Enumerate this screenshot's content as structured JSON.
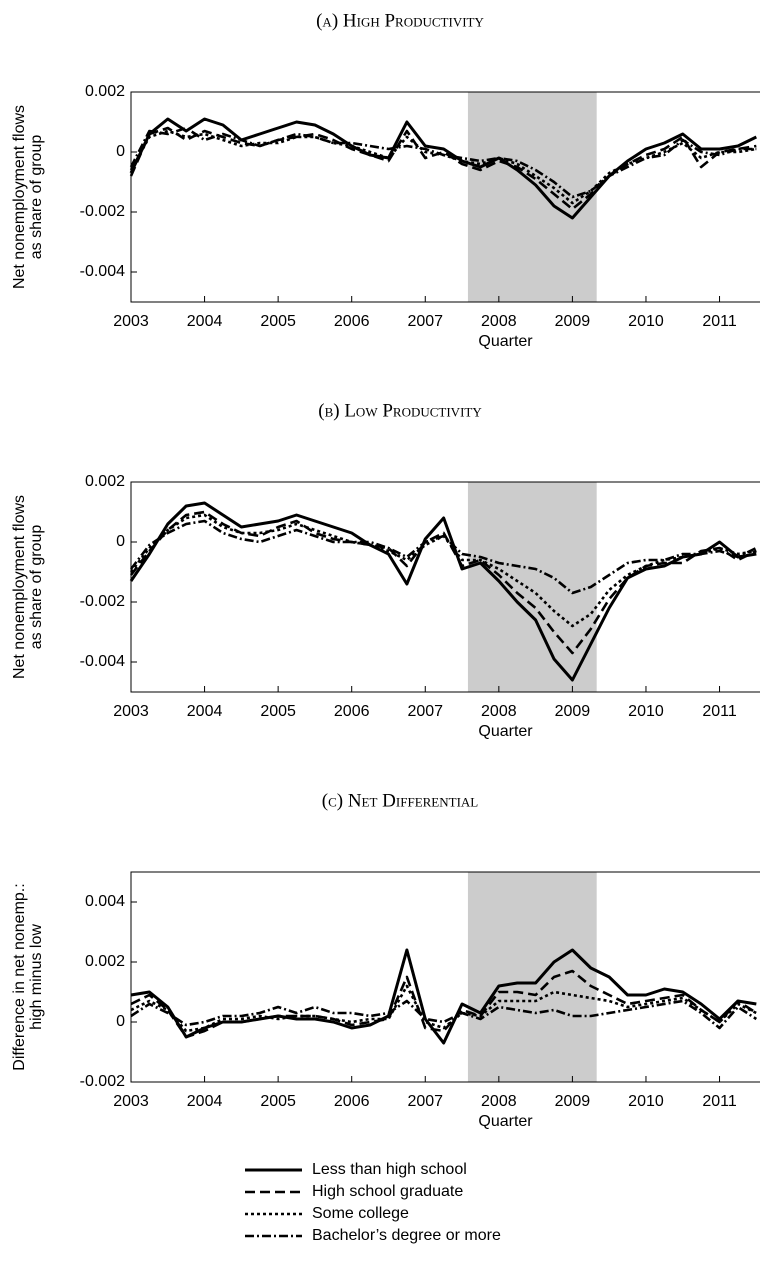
{
  "chart_data": [
    {
      "type": "line",
      "title": "(a) High Productivity",
      "xlabel": "Quarter",
      "ylabel": [
        "Net nonemployment flows",
        "as share of group"
      ],
      "x": [
        2003,
        2003.25,
        2003.5,
        2003.75,
        2004,
        2004.25,
        2004.5,
        2004.75,
        2005,
        2005.25,
        2005.5,
        2005.75,
        2006,
        2006.25,
        2006.5,
        2006.75,
        2007,
        2007.25,
        2007.5,
        2007.75,
        2008,
        2008.25,
        2008.5,
        2008.75,
        2009,
        2009.25,
        2009.5,
        2009.75,
        2010,
        2010.25,
        2010.5,
        2010.75,
        2011,
        2011.25,
        2011.5
      ],
      "xlim": [
        2003,
        2011.55
      ],
      "xticks": [
        2003,
        2004,
        2005,
        2006,
        2007,
        2008,
        2009,
        2010,
        2011
      ],
      "ylim": [
        -0.005,
        0.002
      ],
      "yticks": [
        -0.004,
        -0.002,
        0,
        0.002
      ],
      "shade": [
        2007.58,
        2009.33
      ],
      "series": [
        {
          "name": "Less than high school",
          "color": "#000000",
          "dash": "solid",
          "values": [
            -0.0007,
            0.0006,
            0.0011,
            0.0007,
            0.0011,
            0.0009,
            0.0004,
            0.0006,
            0.0008,
            0.001,
            0.0009,
            0.0006,
            0.0002,
            -0.0001,
            -0.0002,
            0.001,
            0.0002,
            0.0001,
            -0.0003,
            -0.0005,
            -0.0002,
            -0.0006,
            -0.0011,
            -0.0018,
            -0.0022,
            -0.0015,
            -0.0008,
            -0.0003,
            0.0001,
            0.0003,
            0.0006,
            0.0001,
            0.0001,
            0.0002,
            0.0005
          ]
        },
        {
          "name": "High school graduate",
          "color": "#000000",
          "dash": "dashed",
          "values": [
            -0.0008,
            0.0006,
            0.0008,
            0.0004,
            0.0007,
            0.0005,
            0.0003,
            0.0002,
            0.0004,
            0.0005,
            0.0006,
            0.0004,
            0.0001,
            -0.0001,
            -0.0003,
            0.0007,
            -0.0002,
            0,
            -0.0004,
            -0.0006,
            -0.0003,
            -0.0005,
            -0.0009,
            -0.0014,
            -0.0019,
            -0.0014,
            -0.0008,
            -0.0004,
            -0.0001,
            0.0001,
            0.0005,
            -0.0005,
            0,
            0.0001,
            0.0002
          ]
        },
        {
          "name": "Some college",
          "color": "#000000",
          "dash": "dotted",
          "values": [
            -0.0006,
            0.0005,
            0.0007,
            0.0005,
            0.0006,
            0.0004,
            0.0002,
            0.0003,
            0.0003,
            0.0005,
            0.0005,
            0.0003,
            0.0002,
            0,
            -0.0002,
            0.0005,
            0,
            -0.0001,
            -0.0003,
            -0.0004,
            -0.0002,
            -0.0004,
            -0.0008,
            -0.0012,
            -0.0017,
            -0.0013,
            -0.0007,
            -0.0004,
            -0.0002,
            0,
            0.0003,
            -0.0002,
            0,
            0,
            0.0001
          ]
        },
        {
          "name": "Bachelor’s degree or more",
          "color": "#000000",
          "dash": "dashdot",
          "values": [
            -0.0005,
            0.0007,
            0.0006,
            0.0008,
            0.0004,
            0.0006,
            0.0004,
            0.0002,
            0.0004,
            0.0006,
            0.0005,
            0.0003,
            0.0003,
            0.0002,
            0.0001,
            0.0002,
            0.0001,
            -0.0001,
            -0.0002,
            -0.0003,
            -0.0002,
            -0.0003,
            -0.0006,
            -0.001,
            -0.0015,
            -0.0013,
            -0.0008,
            -0.0005,
            -0.0002,
            -0.0001,
            0.0004,
            0,
            -0.0001,
            0.0001,
            0.0001
          ]
        }
      ]
    },
    {
      "type": "line",
      "title": "(b) Low Productivity",
      "xlabel": "Quarter",
      "ylabel": [
        "Net nonemployment flows",
        "as share of group"
      ],
      "x": [
        2003,
        2003.25,
        2003.5,
        2003.75,
        2004,
        2004.25,
        2004.5,
        2004.75,
        2005,
        2005.25,
        2005.5,
        2005.75,
        2006,
        2006.25,
        2006.5,
        2006.75,
        2007,
        2007.25,
        2007.5,
        2007.75,
        2008,
        2008.25,
        2008.5,
        2008.75,
        2009,
        2009.25,
        2009.5,
        2009.75,
        2010,
        2010.25,
        2010.5,
        2010.75,
        2011,
        2011.25,
        2011.5
      ],
      "xlim": [
        2003,
        2011.55
      ],
      "xticks": [
        2003,
        2004,
        2005,
        2006,
        2007,
        2008,
        2009,
        2010,
        2011
      ],
      "ylim": [
        -0.005,
        0.002
      ],
      "yticks": [
        -0.004,
        -0.002,
        0,
        0.002
      ],
      "shade": [
        2007.58,
        2009.33
      ],
      "series": [
        {
          "name": "Less than high school",
          "color": "#000000",
          "dash": "solid",
          "values": [
            -0.0013,
            -0.0004,
            0.0006,
            0.0012,
            0.0013,
            0.0009,
            0.0005,
            0.0006,
            0.0007,
            0.0009,
            0.0007,
            0.0005,
            0.0003,
            -0.0001,
            -0.0004,
            -0.0014,
            0.0001,
            0.0008,
            -0.0009,
            -0.0007,
            -0.0013,
            -0.002,
            -0.0026,
            -0.0039,
            -0.0046,
            -0.0034,
            -0.0022,
            -0.0012,
            -0.0009,
            -0.0008,
            -0.0005,
            -0.0004,
            0,
            -0.0005,
            -0.0004
          ]
        },
        {
          "name": "High school graduate",
          "color": "#000000",
          "dash": "dashed",
          "values": [
            -0.0011,
            -0.0003,
            0.0004,
            0.0009,
            0.001,
            0.0006,
            0.0003,
            0.0002,
            0.0005,
            0.0007,
            0.0003,
            0.0001,
            0,
            -0.0001,
            -0.0002,
            -0.0008,
            0,
            0.0003,
            -0.0008,
            -0.0006,
            -0.0011,
            -0.0017,
            -0.0022,
            -0.003,
            -0.0037,
            -0.0029,
            -0.0019,
            -0.0012,
            -0.0008,
            -0.0007,
            -0.0007,
            -0.0003,
            -0.0002,
            -0.0006,
            -0.0003
          ]
        },
        {
          "name": "Some college",
          "color": "#000000",
          "dash": "dotted",
          "values": [
            -0.001,
            -0.0002,
            0.0004,
            0.0008,
            0.0009,
            0.0005,
            0.0003,
            0.0003,
            0.0004,
            0.0006,
            0.0004,
            0.0002,
            0,
            -0.0001,
            -0.0003,
            -0.0006,
            -0.0001,
            0.0002,
            -0.0006,
            -0.0006,
            -0.0009,
            -0.0013,
            -0.0017,
            -0.0023,
            -0.0028,
            -0.0024,
            -0.0016,
            -0.0011,
            -0.0008,
            -0.0006,
            -0.0005,
            -0.0004,
            -0.0002,
            -0.0004,
            -0.0003
          ]
        },
        {
          "name": "Bachelor’s degree or more",
          "color": "#000000",
          "dash": "dashdot",
          "values": [
            -0.0009,
            -0.0001,
            0.0003,
            0.0006,
            0.0007,
            0.0003,
            0.0001,
            0,
            0.0002,
            0.0004,
            0.0002,
            0,
            0,
            0,
            -0.0002,
            -0.0005,
            0,
            0.0002,
            -0.0004,
            -0.0005,
            -0.0007,
            -0.0008,
            -0.0009,
            -0.0012,
            -0.0017,
            -0.0015,
            -0.0011,
            -0.0007,
            -0.0006,
            -0.0006,
            -0.0004,
            -0.0004,
            -0.0003,
            -0.0005,
            -0.0002
          ]
        }
      ]
    },
    {
      "type": "line",
      "title": "(c) Net Differential",
      "xlabel": "Quarter",
      "ylabel": [
        "Difference in net nonemp.:",
        "high minus low"
      ],
      "x": [
        2003,
        2003.25,
        2003.5,
        2003.75,
        2004,
        2004.25,
        2004.5,
        2004.75,
        2005,
        2005.25,
        2005.5,
        2005.75,
        2006,
        2006.25,
        2006.5,
        2006.75,
        2007,
        2007.25,
        2007.5,
        2007.75,
        2008,
        2008.25,
        2008.5,
        2008.75,
        2009,
        2009.25,
        2009.5,
        2009.75,
        2010,
        2010.25,
        2010.5,
        2010.75,
        2011,
        2011.25,
        2011.5
      ],
      "xlim": [
        2003,
        2011.55
      ],
      "xticks": [
        2003,
        2004,
        2005,
        2006,
        2007,
        2008,
        2009,
        2010,
        2011
      ],
      "ylim": [
        -0.002,
        0.005
      ],
      "yticks": [
        -0.002,
        0,
        0.002,
        0.004
      ],
      "shade": [
        2007.58,
        2009.33
      ],
      "series": [
        {
          "name": "Less than high school",
          "color": "#000000",
          "dash": "solid",
          "values": [
            0.0009,
            0.001,
            0.0005,
            -0.0005,
            -0.0002,
            0,
            0,
            0.0001,
            0.0002,
            0.0001,
            0.0001,
            0,
            -0.0002,
            -0.0001,
            0.0002,
            0.0024,
            0.0001,
            -0.0007,
            0.0006,
            0.0003,
            0.0012,
            0.0013,
            0.0013,
            0.002,
            0.0024,
            0.0018,
            0.0015,
            0.0009,
            0.0009,
            0.0011,
            0.001,
            0.0006,
            0.0001,
            0.0007,
            0.0006
          ]
        },
        {
          "name": "High school graduate",
          "color": "#000000",
          "dash": "dashed",
          "values": [
            0.0006,
            0.0009,
            0.0004,
            -0.0005,
            -0.0003,
            0,
            0,
            0.0001,
            0.0002,
            0.0002,
            0.0002,
            0.0001,
            -0.0001,
            0,
            0.0001,
            0.0015,
            -0.0002,
            -0.0003,
            0.0004,
            0.0002,
            0.001,
            0.001,
            0.0009,
            0.0015,
            0.0017,
            0.0012,
            0.0009,
            0.0006,
            0.0007,
            0.0008,
            0.0009,
            0.0004,
            0,
            0.0007,
            0.0003
          ]
        },
        {
          "name": "Some college",
          "color": "#000000",
          "dash": "dotted",
          "values": [
            0.0004,
            0.0007,
            0.0004,
            -0.0003,
            -0.0002,
            0.0001,
            0.0001,
            0.0002,
            0.0001,
            0.0002,
            0.0002,
            0.0001,
            0,
            0.0001,
            0.0001,
            0.0012,
            0,
            -0.0002,
            0.0003,
            0.0002,
            0.0007,
            0.0007,
            0.0007,
            0.001,
            0.0009,
            0.0008,
            0.0007,
            0.0005,
            0.0006,
            0.0007,
            0.0008,
            0.0004,
            0,
            0.0006,
            0.0003
          ]
        },
        {
          "name": "Bachelor’s degree or more",
          "color": "#000000",
          "dash": "dashdot",
          "values": [
            0.0002,
            0.0006,
            0.0003,
            -0.0001,
            0,
            0.0002,
            0.0002,
            0.0003,
            0.0005,
            0.0003,
            0.0005,
            0.0003,
            0.0003,
            0.0002,
            0.0003,
            0.0007,
            0.0001,
            0,
            0.0003,
            0.0001,
            0.0005,
            0.0004,
            0.0003,
            0.0004,
            0.0002,
            0.0002,
            0.0003,
            0.0004,
            0.0005,
            0.0006,
            0.0007,
            0.0003,
            -0.0002,
            0.0005,
            0.0001
          ]
        }
      ]
    }
  ]
}
